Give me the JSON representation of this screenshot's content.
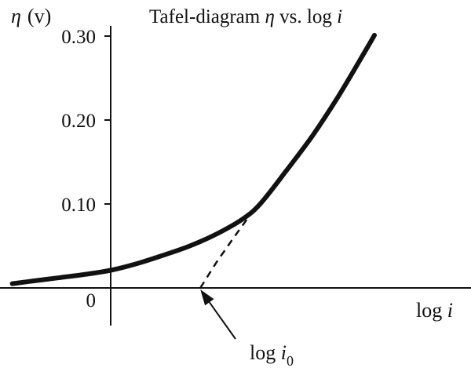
{
  "chart_data": {
    "type": "line",
    "title": {
      "prefix": "Tafel-diagram ",
      "eta": "η",
      "middle": " vs. log ",
      "i": "i"
    },
    "ylabel": {
      "eta": "η",
      "unit": "(v)"
    },
    "xlabel": {
      "log": "log ",
      "i": "i"
    },
    "y_ticks": [
      {
        "value": 0,
        "label": "0"
      },
      {
        "value": 0.1,
        "label": "0.10"
      },
      {
        "value": 0.2,
        "label": "0.20"
      },
      {
        "value": 0.3,
        "label": "0.30"
      }
    ],
    "ylim": [
      -0.045,
      0.34
    ],
    "x_ticks": [],
    "xlim": [
      -1.15,
      3.2
    ],
    "x_axis": "no numeric scale shown",
    "series": [
      {
        "style": "solid",
        "x": [
          -1.12,
          -0.9,
          -0.6,
          -0.3,
          0.0,
          0.3,
          0.6,
          0.9,
          1.2,
          1.5,
          1.7,
          2.0,
          2.3,
          2.6,
          2.9,
          3.0
        ],
        "y": [
          0.005,
          0.008,
          0.012,
          0.016,
          0.021,
          0.029,
          0.039,
          0.05,
          0.064,
          0.082,
          0.1,
          0.14,
          0.182,
          0.23,
          0.283,
          0.301
        ]
      },
      {
        "style": "dashed",
        "x": [
          1.02,
          1.2,
          1.4,
          1.6,
          1.7
        ],
        "y": [
          0.0,
          0.03,
          0.06,
          0.089,
          0.1
        ]
      }
    ],
    "annotations": [
      {
        "text": {
          "log": "log ",
          "i": "i",
          "sub": "0"
        },
        "points_to": {
          "x": 1.02,
          "y": 0.0
        }
      }
    ],
    "grid": false,
    "legend": "none",
    "colors": {
      "curve": "#111111",
      "axis": "#111111"
    }
  }
}
